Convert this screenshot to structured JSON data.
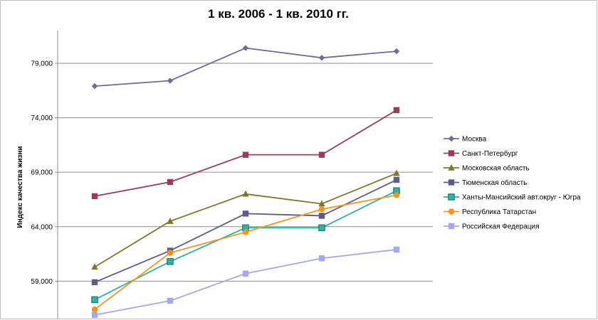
{
  "chart_data": {
    "type": "line",
    "title": "1 кв. 2006 - 1 кв. 2010 гг.",
    "xlabel": "",
    "ylabel": "Индекс качества жизни",
    "categories": [
      "",
      "",
      "",
      "",
      ""
    ],
    "ylim": [
      55.5,
      82.0
    ],
    "yticks": [
      "59,000",
      "64,000",
      "69,000",
      "74,000",
      "79,000"
    ],
    "ytick_values": [
      59,
      64,
      69,
      74,
      79
    ],
    "grid": true,
    "legend_position": "right",
    "series": [
      {
        "name": "Москва",
        "color": "#6b6b9e",
        "marker": "diamond",
        "values": [
          76.9,
          77.4,
          80.4,
          79.5,
          80.1
        ]
      },
      {
        "name": "Санкт-Петербург",
        "color": "#9b3a5c",
        "marker": "square",
        "values": [
          66.8,
          68.1,
          70.6,
          70.6,
          74.7
        ]
      },
      {
        "name": "Московская область",
        "color": "#7a7a2a",
        "marker": "triangle",
        "values": [
          60.3,
          64.5,
          67.0,
          66.1,
          68.9
        ]
      },
      {
        "name": "Тюменская область",
        "color": "#5c5c8c",
        "marker": "square",
        "values": [
          58.9,
          61.8,
          65.2,
          65.0,
          68.3
        ]
      },
      {
        "name": "Ханты-Мансийский авт.округ - Югра",
        "color": "#2bb3a5",
        "marker": "square-outline",
        "values": [
          57.3,
          60.8,
          63.9,
          63.9,
          67.3
        ]
      },
      {
        "name": "Республика Татарстан",
        "color": "#f7941d",
        "marker": "circle",
        "values": [
          56.4,
          61.6,
          63.5,
          65.6,
          66.9
        ]
      },
      {
        "name": "Российская Федерация",
        "color": "#a6a6f2",
        "marker": "square",
        "values": [
          55.9,
          57.2,
          59.7,
          61.1,
          61.9
        ]
      }
    ]
  }
}
